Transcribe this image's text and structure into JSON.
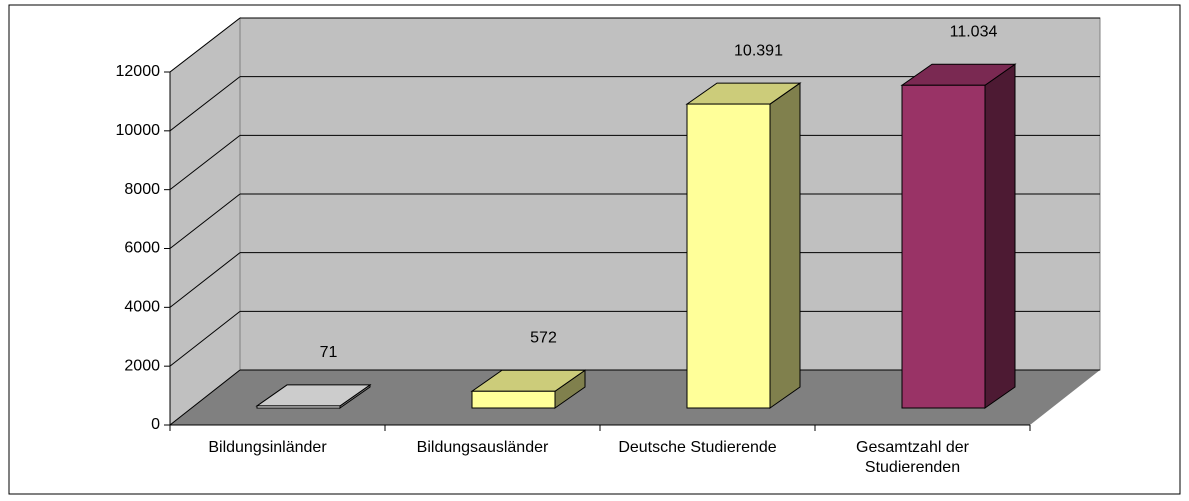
{
  "chart_data": {
    "type": "bar3d",
    "categories": [
      "Bildungsinländer",
      "Bildungsausländer",
      "Deutsche Studierende",
      "Gesamtzahl der Studierenden"
    ],
    "values": [
      71,
      572,
      10391,
      11034
    ],
    "value_labels": [
      "71",
      "572",
      "10.391",
      "11.034"
    ],
    "colors": [
      "#ffffff",
      "#ffff99",
      "#ffff99",
      "#993366"
    ],
    "ylim": [
      0,
      12000
    ],
    "yticks": [
      0,
      2000,
      4000,
      6000,
      8000,
      10000,
      12000
    ],
    "grid": true
  }
}
